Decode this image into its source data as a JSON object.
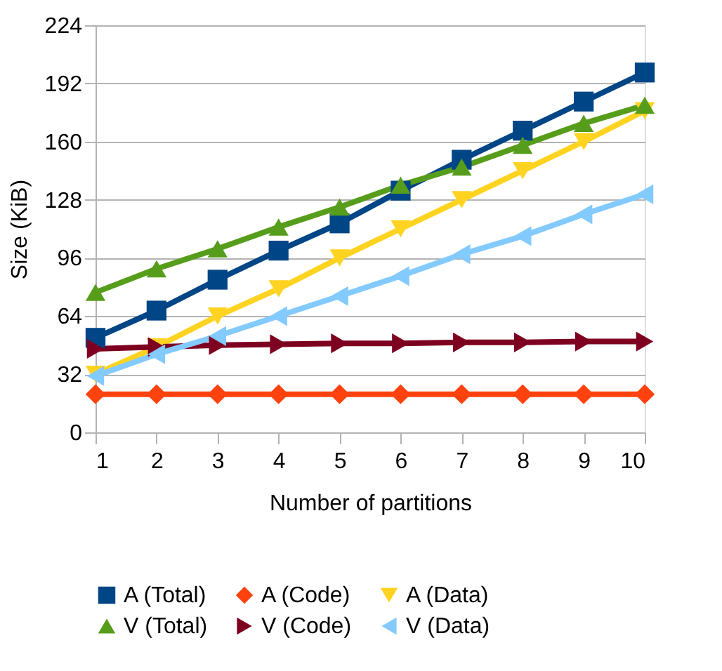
{
  "chart_data": {
    "type": "line",
    "xlabel": "Number of partitions",
    "ylabel": "Size (KiB)",
    "x": [
      1,
      2,
      3,
      4,
      5,
      6,
      7,
      8,
      9,
      10
    ],
    "xlim": [
      1,
      10
    ],
    "xticks": [
      1,
      2,
      3,
      4,
      5,
      6,
      7,
      8,
      9,
      10
    ],
    "ylim": [
      0,
      224
    ],
    "yticks": [
      0,
      32,
      64,
      96,
      128,
      160,
      192,
      224
    ],
    "grid": "y",
    "legend": "bottom",
    "line_style": "solid",
    "series": [
      {
        "name": "A (Total)",
        "color": "#004586",
        "marker": "square",
        "values": [
          52,
          67,
          84,
          100,
          115,
          133,
          150,
          166,
          182,
          198
        ]
      },
      {
        "name": "A (Code)",
        "color": "#ff420e",
        "marker": "diamond",
        "values": [
          21,
          21,
          21,
          21,
          21,
          21,
          21,
          21,
          21,
          21
        ]
      },
      {
        "name": "A (Data)",
        "color": "#ffd320",
        "marker": "triangle-down",
        "values": [
          32,
          47,
          64,
          79,
          96,
          112,
          128,
          144,
          160,
          177
        ]
      },
      {
        "name": "V (Total)",
        "color": "#579d1c",
        "marker": "triangle",
        "values": [
          77,
          90,
          101,
          113,
          124,
          136,
          146,
          158,
          170,
          180
        ]
      },
      {
        "name": "V (Code)",
        "color": "#7e0021",
        "marker": "triangle-right",
        "values": [
          46,
          47,
          48,
          48.5,
          49,
          49,
          49.5,
          49.5,
          50,
          50
        ]
      },
      {
        "name": "V (Data)",
        "color": "#83caff",
        "marker": "triangle-left",
        "values": [
          31,
          43,
          53,
          64,
          75,
          86,
          98,
          108,
          120,
          131
        ]
      }
    ]
  }
}
